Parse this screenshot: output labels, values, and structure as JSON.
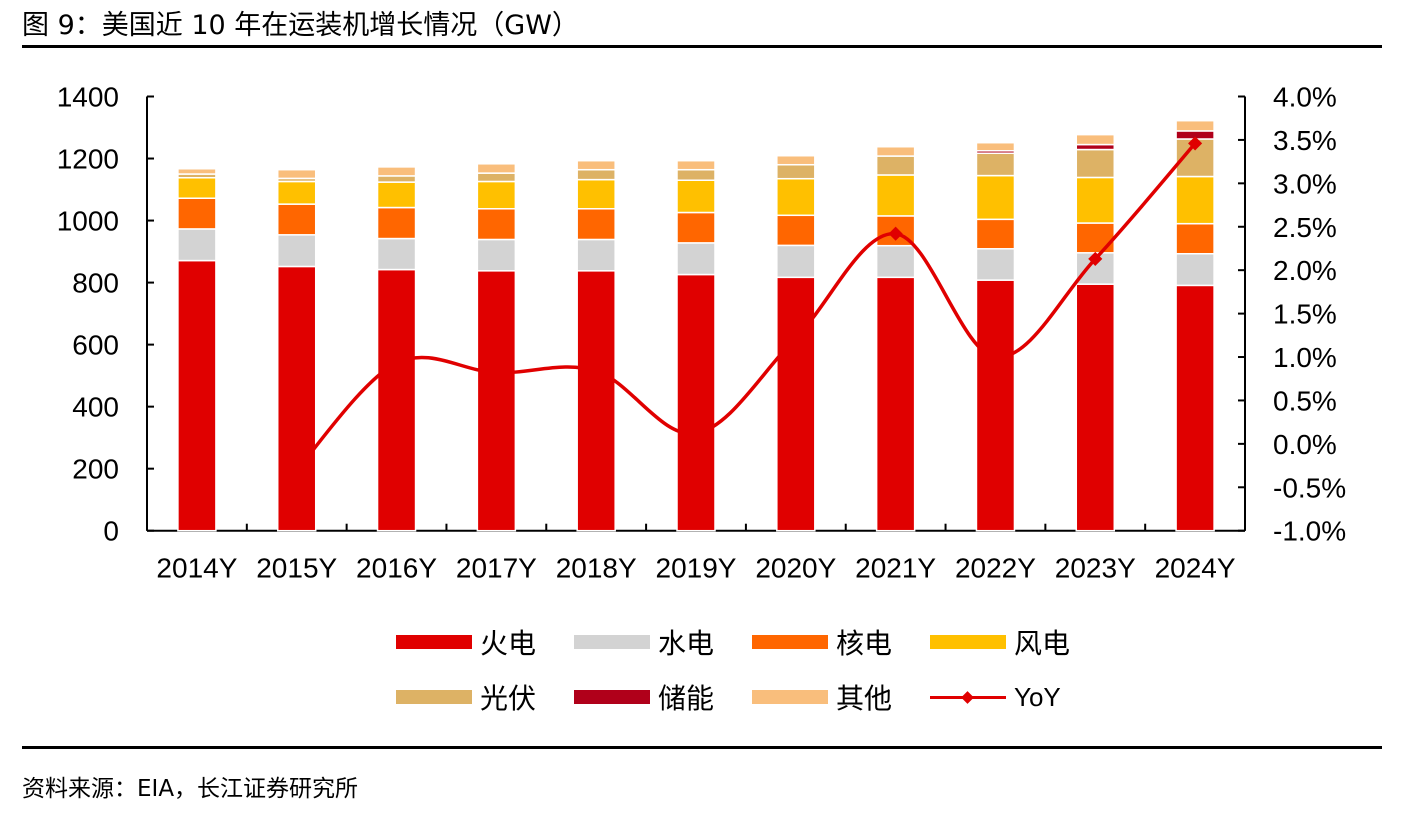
{
  "header": {
    "title": "图 9：美国近 10 年在运装机增长情况（GW）"
  },
  "footer": {
    "source": "资料来源：EIA，长江证券研究所"
  },
  "chart_data": {
    "type": "bar",
    "stacked": true,
    "title": "美国近 10 年在运装机增长情况（GW）",
    "xlabel": "",
    "ylabel": "",
    "categories": [
      "2014Y",
      "2015Y",
      "2016Y",
      "2017Y",
      "2018Y",
      "2019Y",
      "2020Y",
      "2021Y",
      "2022Y",
      "2023Y",
      "2024Y"
    ],
    "ylim": [
      0,
      1400
    ],
    "yticks": [
      0,
      200,
      400,
      600,
      800,
      1000,
      1200,
      1400
    ],
    "y2lim": [
      -1.0,
      4.0
    ],
    "y2ticks": [
      "-1.0%",
      "-0.5%",
      "0.0%",
      "0.5%",
      "1.0%",
      "1.5%",
      "2.0%",
      "2.5%",
      "3.0%",
      "3.5%",
      "4.0%"
    ],
    "grid": false,
    "legend_position": "bottom",
    "series": [
      {
        "name": "火电",
        "color": "#E00000",
        "values": [
          871,
          852,
          842,
          838,
          838,
          826,
          817,
          817,
          808,
          795,
          791
        ]
      },
      {
        "name": "水电",
        "color": "#D3D3D3",
        "values": [
          102,
          102,
          100,
          101,
          101,
          102,
          103,
          102,
          101,
          101,
          102
        ]
      },
      {
        "name": "核电",
        "color": "#FF6600",
        "values": [
          99,
          99,
          100,
          99,
          99,
          98,
          97,
          96,
          95,
          96,
          97
        ]
      },
      {
        "name": "风电",
        "color": "#FFC000",
        "values": [
          66,
          73,
          82,
          88,
          94,
          104,
          118,
          132,
          141,
          147,
          152
        ]
      },
      {
        "name": "光伏",
        "color": "#DDB265",
        "values": [
          12,
          10,
          20,
          27,
          32,
          34,
          45,
          61,
          72,
          90,
          121
        ]
      },
      {
        "name": "储能",
        "color": "#B0001A",
        "values": [
          0,
          0,
          0,
          0,
          0,
          0,
          0,
          0,
          8,
          16,
          26
        ]
      },
      {
        "name": "其他",
        "color": "#F9BE7C",
        "values": [
          17,
          28,
          29,
          30,
          29,
          29,
          29,
          30,
          26,
          32,
          33
        ]
      }
    ],
    "line_series": {
      "name": "YoY",
      "axis": "right",
      "color": "#E00000",
      "unit": "%",
      "values": [
        null,
        -0.3,
        0.93,
        0.82,
        0.84,
        0.12,
        1.22,
        2.42,
        1.0,
        2.13,
        3.46
      ]
    }
  }
}
